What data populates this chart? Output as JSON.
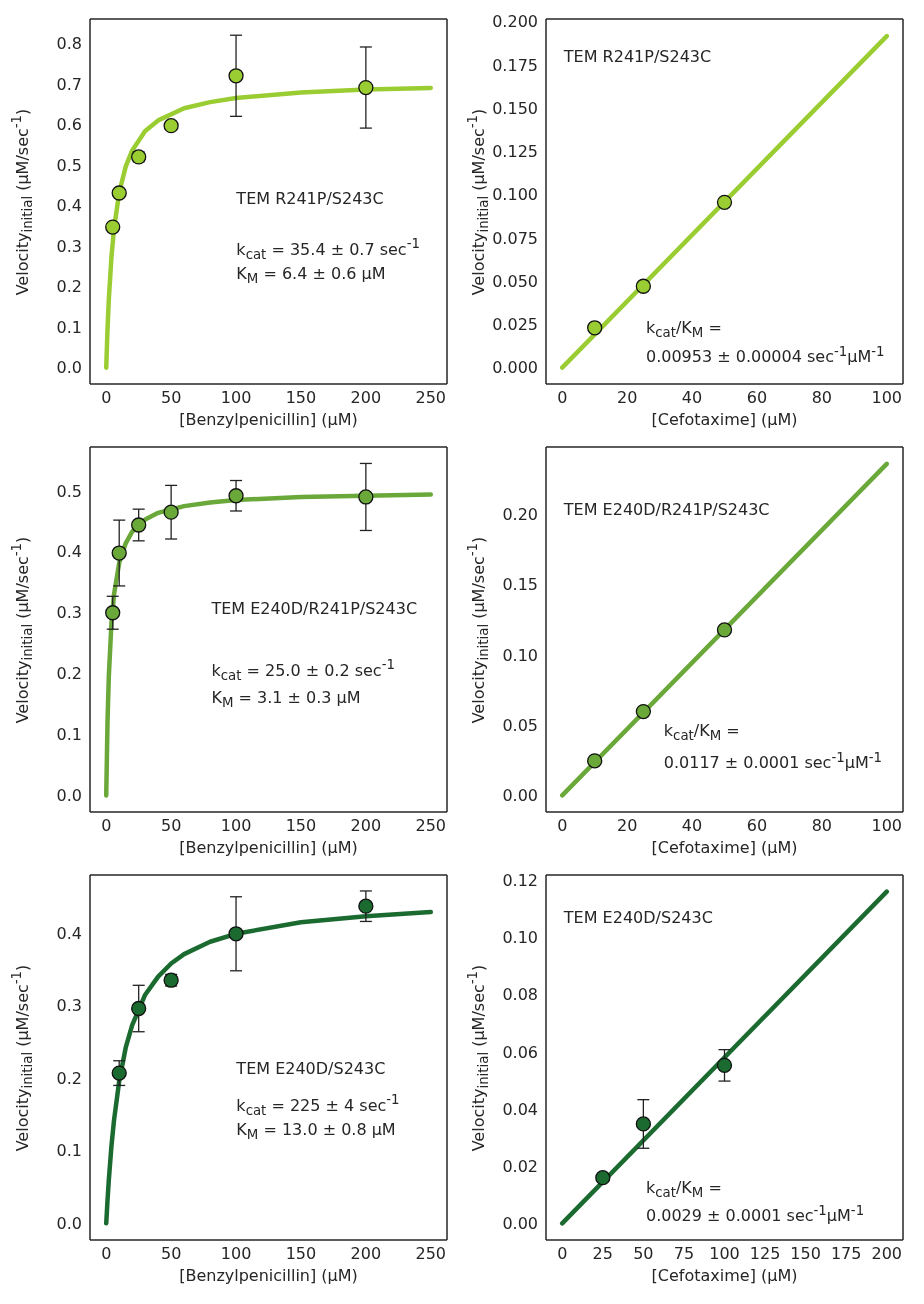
{
  "chart_data": [
    {
      "type": "scatter",
      "xlabel": "[Benzylpenicillin] (μM)",
      "ylabel": "Velocity$_{initial}$ (μM/sec$^{-1}$)",
      "xlim": [
        -12.5,
        262.5
      ],
      "ylim": [
        -0.04,
        0.86
      ],
      "xticks": [
        0,
        50,
        100,
        150,
        200,
        250
      ],
      "yticks": [
        {
          "value": 0,
          "label": "0.0"
        },
        0.1,
        0.2,
        0.3,
        0.4,
        0.5,
        0.6,
        0.7,
        0.8
      ],
      "annotations": [
        "TEM R241P/S243C",
        "k$_{cat}$ = 35.4 ± 0.7 sec$^{-1}$",
        "K$_{M}$ = 6.4 ± 0.6 μM"
      ],
      "series": [
        {
          "type": "line",
          "marker": "none",
          "color": "#9acd32",
          "x": [
            0,
            1,
            2,
            4,
            6,
            10,
            15,
            20,
            30,
            40,
            60,
            80,
            100,
            150,
            200,
            250
          ],
          "values": [
            0,
            0.096,
            0.169,
            0.272,
            0.343,
            0.432,
            0.496,
            0.536,
            0.584,
            0.61,
            0.64,
            0.655,
            0.665,
            0.679,
            0.686,
            0.69
          ]
        },
        {
          "type": "scatter",
          "marker": "circle",
          "color": "#9acd32",
          "x": [
            5,
            10,
            25,
            50,
            100,
            200
          ],
          "values": [
            0.347,
            0.431,
            0.52,
            0.597,
            0.72,
            0.691
          ],
          "errors": [
            null,
            null,
            0.012,
            null,
            0.1,
            0.1
          ]
        }
      ]
    },
    {
      "type": "scatter",
      "xlabel": "[Cefotaxime] (μM)",
      "ylabel": "Velocity$_{initial}$ (μM/sec$^{-1}$)",
      "xlim": [
        -5,
        105
      ],
      "ylim": [
        -0.0095,
        0.2015
      ],
      "xticks": [
        0,
        20,
        40,
        60,
        80,
        100
      ],
      "yticks": [
        {
          "value": 0,
          "label": "0.000"
        },
        0.025,
        {
          "value": 0.05,
          "label": "0.050"
        },
        0.075,
        {
          "value": 0.1,
          "label": "0.100"
        },
        0.125,
        {
          "value": 0.15,
          "label": "0.150"
        },
        0.175,
        {
          "value": 0.2,
          "label": "0.200"
        }
      ],
      "annotations": [
        "TEM R241P/S243C",
        "k$_{cat}$/K$_{M}$ =",
        "0.00953 ± 0.00004 sec$^{-1}$μM$^{-1}$"
      ],
      "series": [
        {
          "type": "line",
          "marker": "none",
          "color": "#9acd32",
          "x": [
            0,
            100
          ],
          "values": [
            0,
            0.1916
          ]
        },
        {
          "type": "scatter",
          "marker": "circle",
          "color": "#9acd32",
          "x": [
            10,
            25,
            50
          ],
          "values": [
            0.023,
            0.047,
            0.0955
          ]
        }
      ]
    },
    {
      "type": "scatter",
      "xlabel": "[Benzylpenicillin] (μM)",
      "ylabel": "Velocity$_{initial}$ (μM/sec$^{-1}$)",
      "xlim": [
        -12.5,
        262.5
      ],
      "ylim": [
        -0.027,
        0.572
      ],
      "xticks": [
        0,
        50,
        100,
        150,
        200,
        250
      ],
      "yticks": [
        {
          "value": 0,
          "label": "0.0"
        },
        0.1,
        0.2,
        0.3,
        0.4,
        0.5
      ],
      "annotations": [
        "TEM E240D/R241P/S243C",
        "k$_{cat}$ = 25.0 ± 0.2 sec$^{-1}$",
        "K$_{M}$ = 3.1 ± 0.3 μM"
      ],
      "series": [
        {
          "type": "line",
          "marker": "none",
          "color": "#6aa83a",
          "x": [
            0,
            1,
            2,
            4,
            6,
            10,
            15,
            20,
            30,
            40,
            60,
            80,
            100,
            150,
            200,
            250
          ],
          "values": [
            0,
            0.122,
            0.196,
            0.282,
            0.33,
            0.382,
            0.414,
            0.433,
            0.453,
            0.464,
            0.475,
            0.481,
            0.485,
            0.49,
            0.492,
            0.494
          ]
        },
        {
          "type": "scatter",
          "marker": "circle",
          "color": "#6aa83a",
          "x": [
            5,
            10,
            25,
            50,
            100,
            200
          ],
          "values": [
            0.3,
            0.398,
            0.444,
            0.465,
            0.492,
            0.49
          ],
          "errors": [
            0.027,
            0.054,
            0.026,
            0.044,
            0.025,
            0.055
          ]
        }
      ]
    },
    {
      "type": "scatter",
      "xlabel": "[Cefotaxime] (μM)",
      "ylabel": "Velocity$_{initial}$ (μM/sec$^{-1}$)",
      "xlim": [
        -5,
        105
      ],
      "ylim": [
        -0.0118,
        0.248
      ],
      "xticks": [
        0,
        20,
        40,
        60,
        80,
        100
      ],
      "yticks": [
        {
          "value": 0,
          "label": "0.00"
        },
        0.05,
        {
          "value": 0.1,
          "label": "0.10"
        },
        0.15,
        {
          "value": 0.2,
          "label": "0.20"
        }
      ],
      "annotations": [
        "TEM E240D/R241P/S243C",
        "k$_{cat}$/K$_{M}$ =",
        "0.0117 ± 0.0001 sec$^{-1}$μM$^{-1}$"
      ],
      "series": [
        {
          "type": "line",
          "marker": "none",
          "color": "#6aa83a",
          "x": [
            0,
            100
          ],
          "values": [
            0,
            0.236
          ]
        },
        {
          "type": "scatter",
          "marker": "circle",
          "color": "#6aa83a",
          "x": [
            10,
            25,
            50
          ],
          "values": [
            0.0246,
            0.0597,
            0.1178
          ]
        }
      ]
    },
    {
      "type": "scatter",
      "xlabel": "[Benzylpenicillin] (μM)",
      "ylabel": "Velocity$_{initial}$ (μM/sec$^{-1}$)",
      "xlim": [
        -12.5,
        262.5
      ],
      "ylim": [
        -0.023,
        0.48
      ],
      "xticks": [
        0,
        50,
        100,
        150,
        200,
        250
      ],
      "yticks": [
        {
          "value": 0,
          "label": "0.0"
        },
        0.1,
        0.2,
        0.3,
        0.4
      ],
      "annotations": [
        "TEM E240D/S243C",
        "k$_{cat}$ = 225 ± 4 sec$^{-1}$",
        "K$_{M}$ = 13.0 ± 0.8 μM"
      ],
      "series": [
        {
          "type": "line",
          "marker": "none",
          "color": "#1b6a30",
          "x": [
            0,
            1,
            2,
            4,
            6,
            10,
            15,
            20,
            30,
            40,
            50,
            60,
            80,
            100,
            150,
            200,
            250
          ],
          "values": [
            0,
            0.032,
            0.06,
            0.106,
            0.142,
            0.196,
            0.242,
            0.273,
            0.315,
            0.34,
            0.358,
            0.371,
            0.388,
            0.399,
            0.415,
            0.423,
            0.429
          ]
        },
        {
          "type": "scatter",
          "marker": "circle",
          "color": "#1b6a30",
          "x": [
            10,
            25,
            50,
            100,
            200
          ],
          "values": [
            0.207,
            0.296,
            0.335,
            0.399,
            0.437
          ],
          "errors": [
            0.017,
            0.032,
            0.008,
            0.051,
            0.021
          ]
        }
      ]
    },
    {
      "type": "scatter",
      "xlabel": "[Cefotaxime] (μM)",
      "ylabel": "Velocity$_{initial}$ (μM/sec$^{-1}$)",
      "xlim": [
        -10,
        210
      ],
      "ylim": [
        -0.0058,
        0.1219
      ],
      "xticks": [
        0,
        25,
        50,
        75,
        100,
        125,
        150,
        175,
        200
      ],
      "yticks": [
        {
          "value": 0,
          "label": "0.00"
        },
        0.02,
        0.04,
        0.06,
        0.08,
        {
          "value": 0.1,
          "label": "0.10"
        },
        0.12
      ],
      "annotations": [
        "TEM E240D/S243C",
        "k$_{cat}$/K$_{M}$ =",
        "0.0029 ± 0.0001 sec$^{-1}$μM$^{-1}$"
      ],
      "series": [
        {
          "type": "line",
          "marker": "none",
          "color": "#1b6a30",
          "x": [
            0,
            200
          ],
          "values": [
            0,
            0.1161
          ]
        },
        {
          "type": "scatter",
          "marker": "circle",
          "color": "#1b6a30",
          "x": [
            25,
            50,
            100
          ],
          "values": [
            0.016,
            0.0348,
            0.0553
          ],
          "errors": [
            null,
            0.0085,
            0.0055
          ]
        }
      ]
    }
  ]
}
